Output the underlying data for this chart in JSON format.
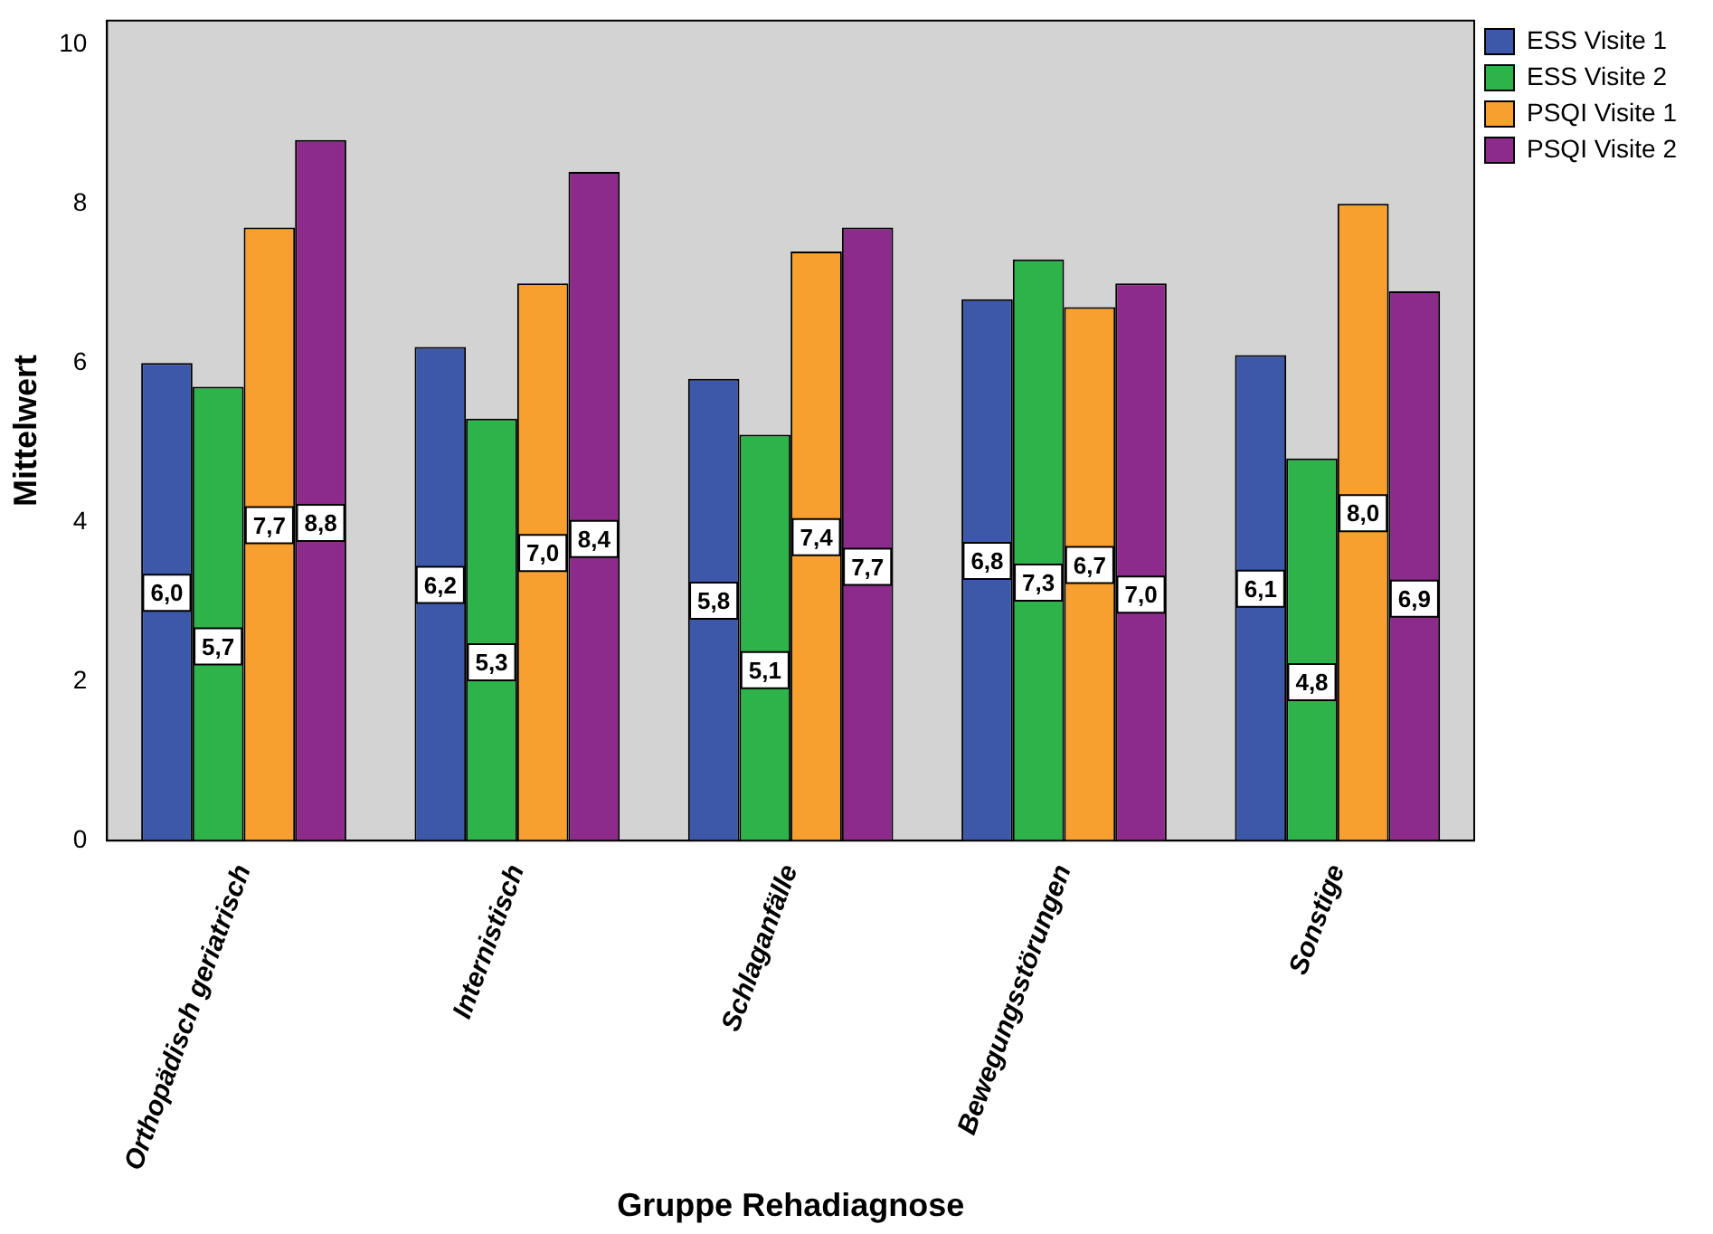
{
  "chart_data": {
    "type": "bar",
    "xlabel": "Gruppe Rehadiagnose",
    "ylabel": "Mittelwert",
    "categories": [
      "Orthopädisch geriatrisch",
      "Internistisch",
      "Schlaganfälle",
      "Bewegungsstörungen",
      "Sonstige"
    ],
    "series": [
      {
        "name": "ESS Visite 1",
        "color": "#3d58a8",
        "values": [
          6.0,
          6.2,
          5.8,
          6.8,
          6.1
        ],
        "value_labels": [
          "6,0",
          "6,2",
          "5,8",
          "6,8",
          "6,1"
        ]
      },
      {
        "name": "ESS Visite 2",
        "color": "#2db34a",
        "values": [
          5.7,
          5.3,
          5.1,
          7.3,
          4.8
        ],
        "value_labels": [
          "5,7",
          "5,3",
          "5,1",
          "7,3",
          "4,8"
        ]
      },
      {
        "name": "PSQI Visite 1",
        "color": "#f7a030",
        "values": [
          7.7,
          7.0,
          7.4,
          6.7,
          8.0
        ],
        "value_labels": [
          "7,7",
          "7,0",
          "7,4",
          "6,7",
          "8,0"
        ]
      },
      {
        "name": "PSQI Visite 2",
        "color": "#8c2b8c",
        "values": [
          8.8,
          8.4,
          7.7,
          7.0,
          6.9
        ],
        "value_labels": [
          "8,8",
          "8,4",
          "7,7",
          "7,0",
          "6,9"
        ]
      }
    ],
    "ylim": [
      0,
      10.3
    ],
    "yticks": [
      0,
      2,
      4,
      6,
      8,
      10
    ],
    "grid": false,
    "legend": "right"
  }
}
